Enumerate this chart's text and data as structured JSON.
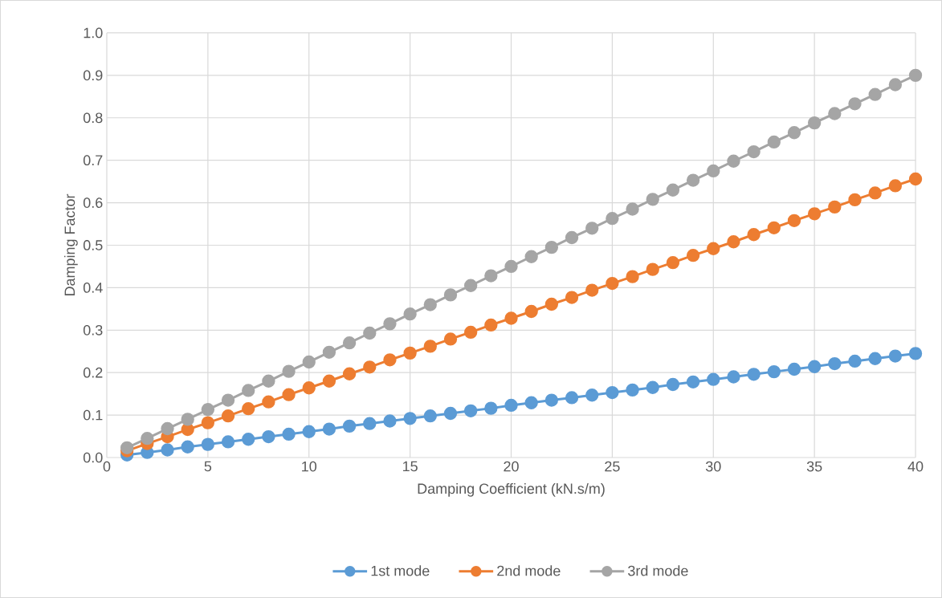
{
  "chart_data": {
    "type": "line",
    "xlabel": "Damping Coefficient (kN.s/m)",
    "ylabel": "Damping Factor",
    "x": [
      1,
      2,
      3,
      4,
      5,
      6,
      7,
      8,
      9,
      10,
      11,
      12,
      13,
      14,
      15,
      16,
      17,
      18,
      19,
      20,
      21,
      22,
      23,
      24,
      25,
      26,
      27,
      28,
      29,
      30,
      31,
      32,
      33,
      34,
      35,
      36,
      37,
      38,
      39,
      40
    ],
    "series": [
      {
        "name": "1st mode",
        "color": "#5b9bd5",
        "values": [
          0.006,
          0.012,
          0.018,
          0.025,
          0.031,
          0.037,
          0.043,
          0.049,
          0.055,
          0.061,
          0.067,
          0.074,
          0.08,
          0.086,
          0.092,
          0.098,
          0.104,
          0.11,
          0.116,
          0.123,
          0.129,
          0.135,
          0.141,
          0.147,
          0.153,
          0.159,
          0.165,
          0.172,
          0.178,
          0.184,
          0.19,
          0.196,
          0.202,
          0.208,
          0.214,
          0.221,
          0.227,
          0.233,
          0.239,
          0.245
        ]
      },
      {
        "name": "2nd mode",
        "color": "#ed7d31",
        "values": [
          0.016,
          0.033,
          0.049,
          0.066,
          0.082,
          0.098,
          0.115,
          0.131,
          0.148,
          0.164,
          0.18,
          0.197,
          0.213,
          0.23,
          0.246,
          0.262,
          0.279,
          0.295,
          0.312,
          0.328,
          0.344,
          0.361,
          0.377,
          0.394,
          0.41,
          0.426,
          0.443,
          0.459,
          0.476,
          0.492,
          0.508,
          0.525,
          0.541,
          0.558,
          0.574,
          0.59,
          0.607,
          0.623,
          0.64,
          0.656
        ]
      },
      {
        "name": "3rd mode",
        "color": "#a5a5a5",
        "values": [
          0.023,
          0.045,
          0.068,
          0.09,
          0.113,
          0.135,
          0.158,
          0.18,
          0.203,
          0.225,
          0.248,
          0.27,
          0.293,
          0.315,
          0.338,
          0.36,
          0.383,
          0.405,
          0.428,
          0.45,
          0.473,
          0.495,
          0.518,
          0.54,
          0.563,
          0.585,
          0.608,
          0.63,
          0.653,
          0.675,
          0.698,
          0.72,
          0.743,
          0.765,
          0.788,
          0.81,
          0.833,
          0.855,
          0.878,
          0.9
        ]
      }
    ],
    "xlim": [
      0,
      40
    ],
    "xticks": [
      0,
      5,
      10,
      15,
      20,
      25,
      30,
      35,
      40
    ],
    "ylim": [
      0,
      1.0
    ],
    "yticks": [
      {
        "value": 0,
        "label": "0.0"
      },
      {
        "value": 0.1,
        "label": "0.1"
      },
      {
        "value": 0.2,
        "label": "0.2"
      },
      {
        "value": 0.3,
        "label": "0.3"
      },
      {
        "value": 0.4,
        "label": "0.4"
      },
      {
        "value": 0.5,
        "label": "0.5"
      },
      {
        "value": 0.6,
        "label": "0.6"
      },
      {
        "value": 0.7,
        "label": "0.7"
      },
      {
        "value": 0.8,
        "label": "0.8"
      },
      {
        "value": 0.9,
        "label": "0.9"
      },
      {
        "value": 1.0,
        "label": "1.0"
      }
    ],
    "grid": true,
    "legend": "bottom",
    "marker": "circle",
    "line_style": "solid"
  }
}
